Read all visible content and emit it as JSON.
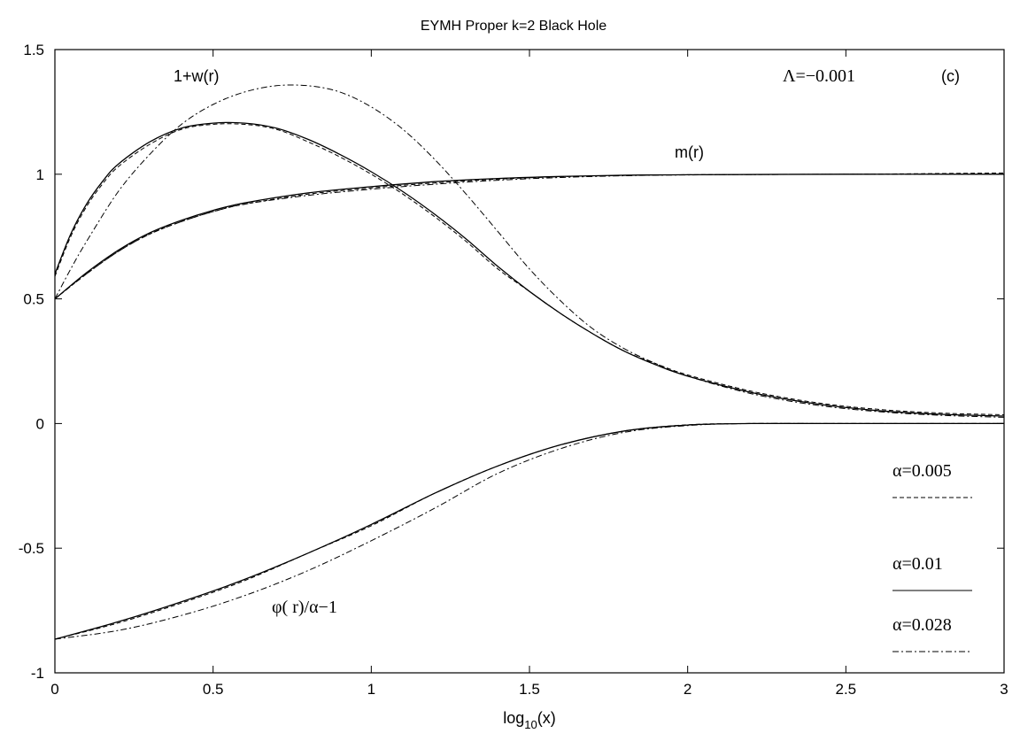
{
  "chart_data": {
    "type": "line",
    "title": "EYMH Proper k=2 Black Hole",
    "xlabel": "log10(x)",
    "xlabel_base": "log",
    "xlabel_sub": "10",
    "xlabel_tail": "(x)",
    "ylabel": "",
    "xlim": [
      0,
      3
    ],
    "ylim": [
      -1,
      1.5
    ],
    "xticks": [
      "0",
      "0.5",
      "1",
      "1.5",
      "2",
      "2.5",
      "3"
    ],
    "xtick_values": [
      0,
      0.5,
      1,
      1.5,
      2,
      2.5,
      3
    ],
    "yticks": [
      "-1",
      "-0.5",
      "0",
      "0.5",
      "1",
      "1.5"
    ],
    "ytick_values": [
      -1,
      -0.5,
      0,
      0.5,
      1,
      1.5
    ],
    "grid": false,
    "legend_position": "right",
    "annotations": {
      "w_label": "1+w(r)",
      "m_label": "m(r)",
      "phi_label": "φ( r)/α−1",
      "lambda_label": "Λ=−0.001",
      "panel_label": "(c)"
    },
    "series": [
      {
        "name": "α=0.005",
        "style": "dashed",
        "curves": {
          "w": {
            "x": [
              0,
              0.05,
              0.1,
              0.15,
              0.2,
              0.3,
              0.4,
              0.5,
              0.6,
              0.7,
              0.8,
              0.9,
              1.0,
              1.1,
              1.2,
              1.3,
              1.4,
              1.5,
              1.6,
              1.7,
              1.8,
              1.9,
              2.0,
              2.2,
              2.4,
              2.6,
              2.8,
              3.0
            ],
            "y": [
              0.59,
              0.75,
              0.87,
              0.96,
              1.03,
              1.12,
              1.18,
              1.2,
              1.2,
              1.18,
              1.13,
              1.07,
              1.0,
              0.92,
              0.83,
              0.73,
              0.62,
              0.53,
              0.44,
              0.36,
              0.29,
              0.24,
              0.195,
              0.13,
              0.085,
              0.057,
              0.042,
              0.035
            ]
          },
          "m": {
            "x": [
              0,
              0.1,
              0.2,
              0.3,
              0.4,
              0.5,
              0.6,
              0.8,
              1.0,
              1.2,
              1.4,
              1.6,
              1.8,
              2.0,
              2.5,
              3.0
            ],
            "y": [
              0.5,
              0.6,
              0.69,
              0.76,
              0.81,
              0.85,
              0.88,
              0.92,
              0.945,
              0.965,
              0.98,
              0.99,
              0.995,
              0.998,
              1.0,
              1.005
            ]
          },
          "phi": {
            "x": [
              0,
              0.2,
              0.4,
              0.6,
              0.8,
              1.0,
              1.2,
              1.4,
              1.6,
              1.8,
              2.0,
              2.2,
              2.5,
              3.0
            ],
            "y": [
              -0.865,
              -0.8,
              -0.72,
              -0.63,
              -0.52,
              -0.41,
              -0.28,
              -0.17,
              -0.085,
              -0.03,
              -0.005,
              0.0,
              0.0,
              0.0
            ]
          }
        }
      },
      {
        "name": "α=0.01",
        "style": "solid",
        "curves": {
          "w": {
            "x": [
              0,
              0.05,
              0.1,
              0.15,
              0.2,
              0.3,
              0.4,
              0.5,
              0.6,
              0.7,
              0.8,
              0.9,
              1.0,
              1.1,
              1.2,
              1.3,
              1.4,
              1.5,
              1.6,
              1.7,
              1.8,
              1.9,
              2.0,
              2.2,
              2.4,
              2.6,
              2.8,
              3.0
            ],
            "y": [
              0.6,
              0.76,
              0.88,
              0.97,
              1.04,
              1.13,
              1.185,
              1.205,
              1.205,
              1.185,
              1.14,
              1.08,
              1.01,
              0.93,
              0.84,
              0.74,
              0.63,
              0.53,
              0.44,
              0.36,
              0.29,
              0.235,
              0.19,
              0.125,
              0.08,
              0.052,
              0.037,
              0.03
            ]
          },
          "m": {
            "x": [
              0,
              0.1,
              0.2,
              0.3,
              0.4,
              0.5,
              0.6,
              0.8,
              1.0,
              1.2,
              1.4,
              1.6,
              1.8,
              2.0,
              2.5,
              3.0
            ],
            "y": [
              0.5,
              0.605,
              0.695,
              0.765,
              0.815,
              0.855,
              0.885,
              0.925,
              0.95,
              0.97,
              0.983,
              0.991,
              0.996,
              0.998,
              1.0,
              1.0
            ]
          },
          "phi": {
            "x": [
              0,
              0.2,
              0.4,
              0.6,
              0.8,
              1.0,
              1.2,
              1.4,
              1.6,
              1.8,
              2.0,
              2.2,
              2.5,
              3.0
            ],
            "y": [
              -0.865,
              -0.795,
              -0.715,
              -0.625,
              -0.52,
              -0.405,
              -0.28,
              -0.17,
              -0.085,
              -0.03,
              -0.006,
              0.0,
              0.0,
              0.0
            ]
          }
        }
      },
      {
        "name": "α=0.028",
        "style": "dashdot",
        "curves": {
          "w": {
            "x": [
              0,
              0.05,
              0.1,
              0.2,
              0.3,
              0.4,
              0.5,
              0.6,
              0.7,
              0.8,
              0.9,
              1.0,
              1.1,
              1.2,
              1.3,
              1.4,
              1.5,
              1.6,
              1.7,
              1.8,
              1.9,
              2.0,
              2.2,
              2.4,
              2.6,
              2.8,
              3.0
            ],
            "y": [
              0.5,
              0.62,
              0.73,
              0.93,
              1.08,
              1.2,
              1.28,
              1.33,
              1.355,
              1.355,
              1.33,
              1.27,
              1.18,
              1.06,
              0.92,
              0.77,
              0.62,
              0.49,
              0.38,
              0.3,
              0.24,
              0.19,
              0.12,
              0.075,
              0.048,
              0.033,
              0.025
            ]
          },
          "m": {
            "x": [
              0,
              0.1,
              0.2,
              0.3,
              0.4,
              0.5,
              0.6,
              0.8,
              1.0,
              1.2,
              1.4,
              1.6,
              1.8,
              2.0,
              2.5,
              3.0
            ],
            "y": [
              0.5,
              0.6,
              0.69,
              0.76,
              0.81,
              0.85,
              0.88,
              0.915,
              0.94,
              0.96,
              0.976,
              0.987,
              0.994,
              0.997,
              1.0,
              1.0
            ]
          },
          "phi": {
            "x": [
              0,
              0.2,
              0.4,
              0.6,
              0.8,
              1.0,
              1.2,
              1.4,
              1.6,
              1.8,
              2.0,
              2.2,
              2.5,
              3.0
            ],
            "y": [
              -0.865,
              -0.83,
              -0.77,
              -0.69,
              -0.59,
              -0.47,
              -0.34,
              -0.2,
              -0.1,
              -0.035,
              -0.008,
              0.0,
              0.0,
              0.0
            ]
          }
        }
      }
    ]
  }
}
